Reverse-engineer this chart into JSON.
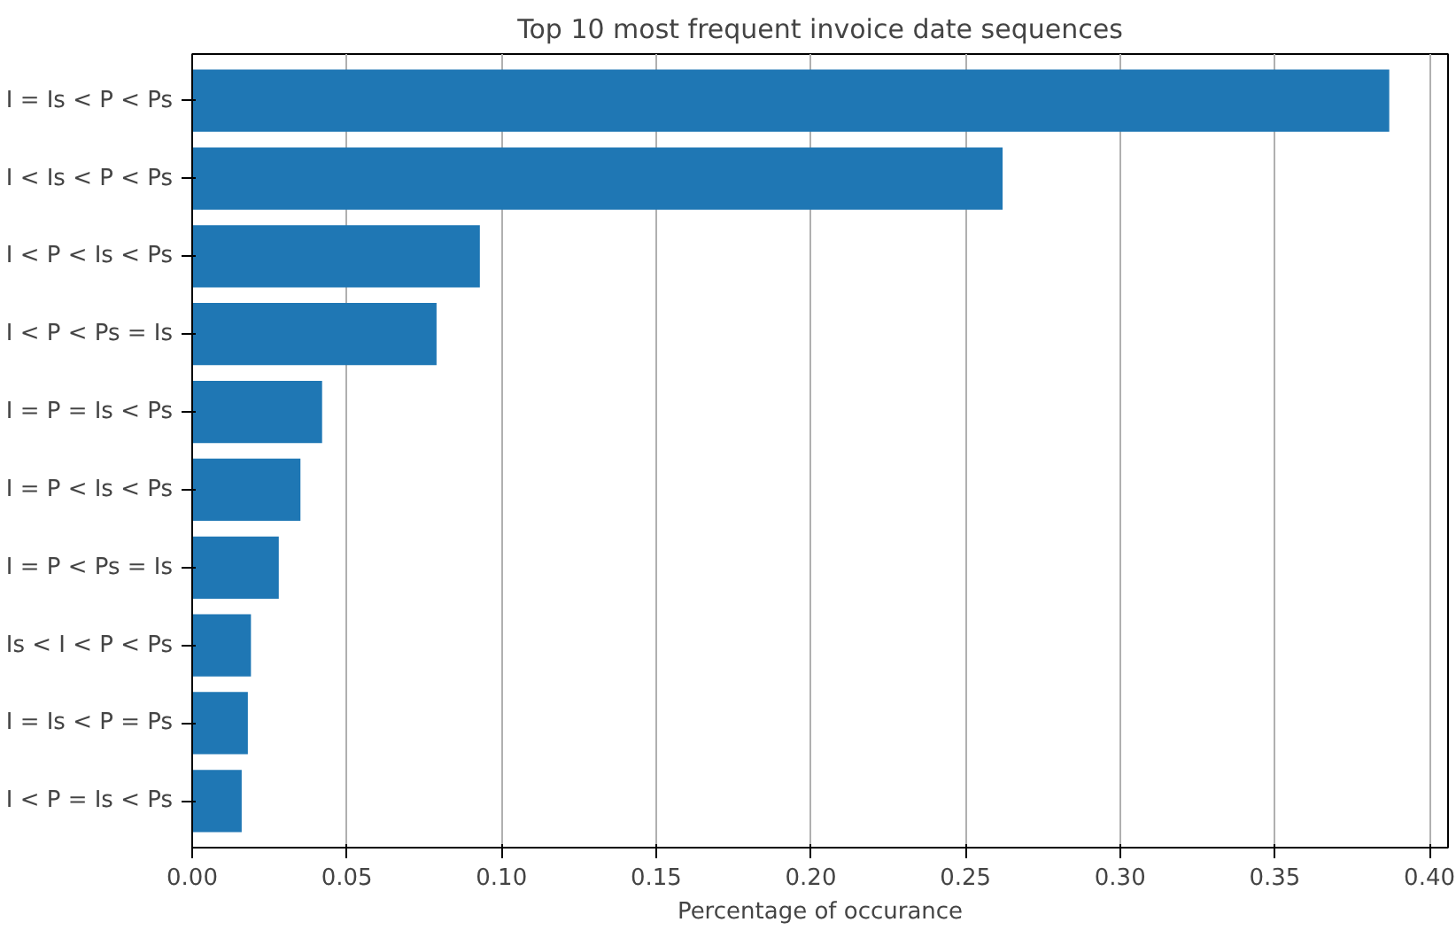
{
  "chart_data": {
    "type": "bar",
    "orientation": "horizontal",
    "title": "Top 10 most frequent invoice date sequences",
    "xlabel": "Percentage of occurance",
    "categories": [
      "I = Is < P < Ps",
      "I < Is < P < Ps",
      "I < P < Is < Ps",
      "I < P < Ps = Is",
      "I = P = Is < Ps",
      "I = P < Is < Ps",
      "I = P < Ps = Is",
      "Is < I < P < Ps",
      "I = Is < P = Ps",
      "I < P = Is < Ps"
    ],
    "values": [
      0.387,
      0.262,
      0.093,
      0.079,
      0.042,
      0.035,
      0.028,
      0.019,
      0.018,
      0.016
    ],
    "color": "#1f77b4",
    "xlim": [
      0,
      0.406
    ],
    "xticks": [
      {
        "value": 0,
        "label": "0.00"
      },
      {
        "value": 0.05,
        "label": "0.05"
      },
      {
        "value": 0.1,
        "label": "0.10"
      },
      {
        "value": 0.15,
        "label": "0.15"
      },
      {
        "value": 0.2,
        "label": "0.20"
      },
      {
        "value": 0.25,
        "label": "0.25"
      },
      {
        "value": 0.3,
        "label": "0.30"
      },
      {
        "value": 0.35,
        "label": "0.35"
      },
      {
        "value": 0.4,
        "label": "0.40"
      }
    ],
    "grid": "x"
  }
}
